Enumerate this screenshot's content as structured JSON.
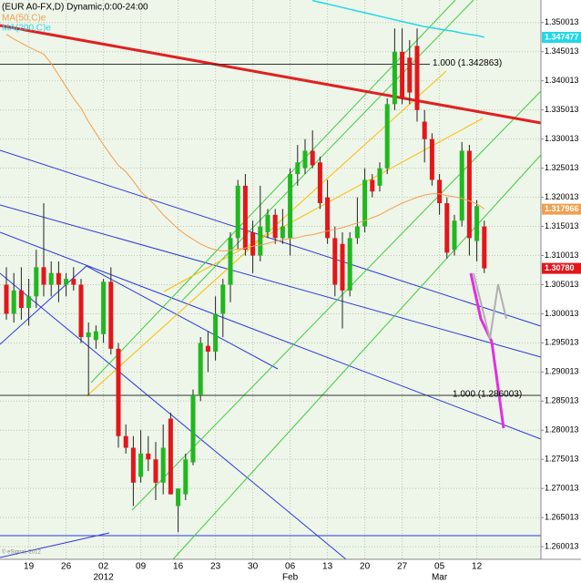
{
  "chart_data": {
    "type": "candlestick",
    "title": "(EUR A0-FX,D) Dynamic,0:00-24:00",
    "copyright": "© eSignal, 2012",
    "categories": [
      null,
      null,
      null,
      "19",
      null,
      null,
      null,
      null,
      "26",
      null,
      null,
      null,
      null,
      "02",
      null,
      null,
      null,
      null,
      "09",
      null,
      null,
      null,
      null,
      "16",
      null,
      null,
      null,
      null,
      "23",
      null,
      null,
      null,
      null,
      "30",
      null,
      null,
      null,
      null,
      "06",
      null,
      null,
      null,
      null,
      "13",
      null,
      null,
      null,
      null,
      "20",
      null,
      null,
      null,
      null,
      "27",
      null,
      null,
      null,
      null,
      "05",
      null,
      null,
      null,
      null,
      "12",
      null
    ],
    "period_labels": [
      null,
      null,
      null,
      null,
      null,
      null,
      null,
      null,
      null,
      null,
      null,
      null,
      null,
      "2012",
      null,
      null,
      null,
      null,
      null,
      null,
      null,
      null,
      null,
      null,
      null,
      null,
      null,
      null,
      null,
      null,
      null,
      null,
      null,
      null,
      null,
      null,
      null,
      null,
      "Feb",
      null,
      null,
      null,
      null,
      null,
      null,
      null,
      null,
      null,
      null,
      null,
      null,
      null,
      null,
      null,
      null,
      null,
      null,
      null,
      "Mar",
      null,
      null,
      null,
      null,
      null,
      null
    ],
    "open": [
      1.305,
      1.3,
      1.304,
      1.301,
      1.303,
      1.308,
      1.305,
      1.307,
      1.305,
      1.306,
      1.305,
      1.296,
      1.2955,
      1.2965,
      1.3055,
      1.294,
      1.279,
      1.277,
      1.272,
      1.276,
      1.275,
      1.271,
      1.282,
      1.267,
      1.269,
      1.2745,
      1.286,
      1.2945,
      1.2935,
      1.3,
      1.305,
      1.313,
      1.322,
      1.314,
      1.31,
      1.314,
      1.317,
      1.313,
      1.313,
      1.324,
      1.325,
      1.328,
      1.326,
      1.32,
      1.313,
      1.312,
      1.304,
      1.313,
      1.315,
      1.323,
      1.322,
      1.325,
      1.336,
      1.345,
      1.344,
      1.346,
      1.333,
      1.33,
      1.323,
      1.319,
      1.311,
      1.316,
      1.328,
      1.3125,
      1.315
    ],
    "high": [
      1.308,
      1.307,
      1.308,
      1.306,
      1.311,
      1.319,
      1.309,
      1.309,
      1.307,
      1.308,
      1.306,
      1.2985,
      1.298,
      1.306,
      1.308,
      1.295,
      1.281,
      1.279,
      1.28,
      1.279,
      1.278,
      1.281,
      1.283,
      1.27,
      1.276,
      1.287,
      1.296,
      1.297,
      1.303,
      1.306,
      1.314,
      1.323,
      1.324,
      1.316,
      1.322,
      1.318,
      1.318,
      1.318,
      1.325,
      1.329,
      1.33,
      1.3315,
      1.327,
      1.323,
      1.315,
      1.314,
      1.314,
      1.32,
      1.325,
      1.324,
      1.326,
      1.337,
      1.349,
      1.349,
      1.347,
      1.349,
      1.335,
      1.331,
      1.324,
      1.32,
      1.317,
      1.3295,
      1.329,
      1.3195,
      1.316
    ],
    "low": [
      1.299,
      1.2985,
      1.299,
      1.298,
      1.301,
      1.303,
      1.303,
      1.302,
      1.303,
      1.304,
      1.295,
      1.286,
      1.294,
      1.295,
      1.293,
      1.277,
      1.276,
      1.267,
      1.271,
      1.273,
      1.268,
      1.269,
      1.269,
      1.2625,
      1.268,
      1.274,
      1.285,
      1.29,
      1.292,
      1.296,
      1.302,
      1.311,
      1.31,
      1.307,
      1.309,
      1.313,
      1.312,
      1.312,
      1.31,
      1.322,
      1.324,
      1.325,
      1.318,
      1.312,
      1.303,
      1.2975,
      1.303,
      1.312,
      1.314,
      1.32,
      1.321,
      1.324,
      1.335,
      1.336,
      1.336,
      1.333,
      1.326,
      1.322,
      1.317,
      1.3095,
      1.31,
      1.315,
      1.31,
      1.309,
      1.307
    ],
    "close": [
      1.3,
      1.304,
      1.301,
      1.303,
      1.308,
      1.305,
      1.307,
      1.305,
      1.306,
      1.305,
      1.296,
      1.2968,
      1.297,
      1.3055,
      1.294,
      1.279,
      1.277,
      1.271,
      1.276,
      1.275,
      1.271,
      1.277,
      1.269,
      1.27,
      1.275,
      1.286,
      1.295,
      1.2935,
      1.3,
      1.305,
      1.313,
      1.322,
      1.311,
      1.31,
      1.315,
      1.317,
      1.313,
      1.315,
      1.324,
      1.326,
      1.328,
      1.3255,
      1.319,
      1.313,
      1.305,
      1.304,
      1.313,
      1.315,
      1.323,
      1.321,
      1.325,
      1.336,
      1.345,
      1.337,
      1.338,
      1.335,
      1.33,
      1.323,
      1.319,
      1.3105,
      1.316,
      1.328,
      1.313,
      1.3185,
      1.3078
    ],
    "up_color": "#1fb81f",
    "down_color": "#e3161a",
    "series": [
      {
        "name": "MA(50,C)e",
        "color": "#f0a050",
        "values": [
          1.348,
          1.3472,
          1.3465,
          1.3458,
          1.3452,
          1.3446,
          1.343,
          1.341,
          1.339,
          1.337,
          1.3353,
          1.333,
          1.331,
          1.329,
          1.3272,
          1.3255,
          1.3244,
          1.3228,
          1.321,
          1.3198,
          1.3185,
          1.317,
          1.3158,
          1.3146,
          1.3136,
          1.3128,
          1.312,
          1.3114,
          1.311,
          1.3108,
          1.3109,
          1.3111,
          1.3113,
          1.3116,
          1.3118,
          1.3121,
          1.3124,
          1.3127,
          1.3129,
          1.3131,
          1.3134,
          1.3136,
          1.3139,
          1.3142,
          1.3145,
          1.3148,
          1.3152,
          1.3156,
          1.316,
          1.3165,
          1.317,
          1.3177,
          1.3184,
          1.319,
          1.3195,
          1.32,
          1.3204,
          1.3206,
          1.3206,
          1.3203,
          1.3201,
          1.3198,
          1.3194,
          1.3189,
          1.318
        ]
      },
      {
        "name": "MA(200,C)e",
        "color": "#22d8e8",
        "values": [
          null,
          null,
          null,
          null,
          null,
          null,
          null,
          null,
          null,
          null,
          null,
          null,
          null,
          null,
          null,
          null,
          null,
          null,
          null,
          null,
          null,
          null,
          null,
          null,
          null,
          null,
          null,
          null,
          null,
          null,
          null,
          null,
          null,
          null,
          null,
          null,
          null,
          null,
          null,
          null,
          null,
          1.3538,
          1.3535,
          1.3532,
          1.3529,
          1.3526,
          1.3523,
          1.352,
          1.3517,
          1.3514,
          1.3511,
          1.3508,
          1.3505,
          1.3502,
          1.3499,
          1.3496,
          1.3493,
          1.3491,
          1.3489,
          1.3487,
          1.3485,
          1.3482,
          1.348,
          1.3478,
          1.3475
        ]
      }
    ],
    "price_tags": [
      {
        "value": 1.347477,
        "label": "1.347477",
        "color": "#22d8e8"
      },
      {
        "value": 1.317966,
        "label": "1.317966",
        "color": "#f0a050"
      },
      {
        "value": 1.3078,
        "label": "1.30780",
        "color": "#e3161a"
      }
    ],
    "levels": [
      {
        "value": 1.342863,
        "label": "1.000 (1.342863)"
      },
      {
        "value": 1.286003,
        "label": "1.000 (1.286003)"
      }
    ],
    "ylim": [
      1.25784,
      1.35389
    ],
    "yticks": [
      1.260013,
      1.265013,
      1.270013,
      1.275013,
      1.280013,
      1.285013,
      1.290013,
      1.295013,
      1.300013,
      1.305013,
      1.310013,
      1.315013,
      1.320013,
      1.325013,
      1.330013,
      1.335013,
      1.340013,
      1.345013,
      1.350013
    ],
    "grid": true
  }
}
